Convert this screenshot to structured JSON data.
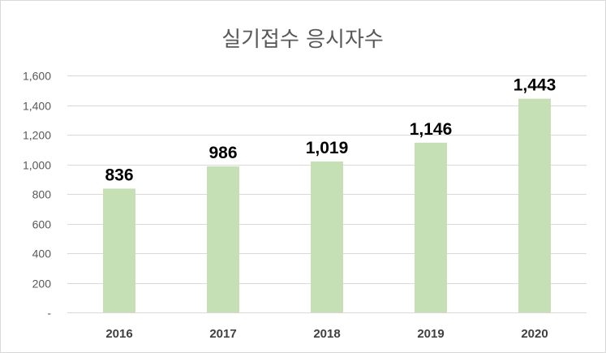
{
  "chart_data": {
    "type": "bar",
    "title": "실기접수 응시자수",
    "categories": [
      "2016",
      "2017",
      "2018",
      "2019",
      "2020"
    ],
    "values": [
      836,
      986,
      1019,
      1146,
      1443
    ],
    "data_labels": [
      "836",
      "986",
      "1,019",
      "1,146",
      "1,443"
    ],
    "ylim": [
      0,
      1600
    ],
    "y_ticks": [
      0,
      200,
      400,
      600,
      800,
      1000,
      1200,
      1400,
      1600
    ],
    "y_tick_labels": [
      "-",
      "200",
      "400",
      "600",
      "800",
      "1,000",
      "1,200",
      "1,400",
      "1,600"
    ],
    "grid": true,
    "legend": "none",
    "bar_color": "#c5e0b4",
    "grid_color": "#d9d9d9"
  }
}
